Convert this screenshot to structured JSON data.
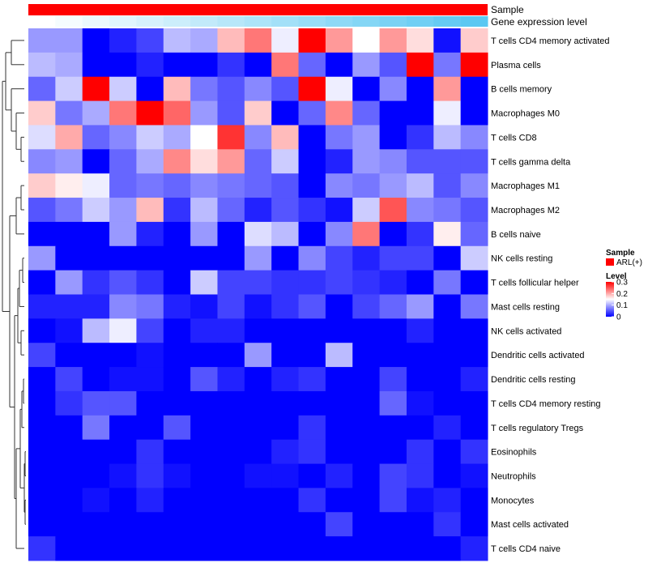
{
  "chart_data": {
    "type": "heatmap",
    "annotation_tracks": [
      {
        "name": "Sample",
        "value_label": "ARL(+)",
        "color": "#ff0000"
      },
      {
        "name": "Gene expression level"
      }
    ],
    "gene_expression_ramp": [
      "#ffffff",
      "#5bc8f2"
    ],
    "rows": [
      "T cells CD4 memory activated",
      "Plasma cells",
      "B cells memory",
      "Macrophages M0",
      "T cells CD8",
      "T cells gamma delta",
      "Macrophages M1",
      "Macrophages M2",
      "B cells naive",
      "NK cells resting",
      "T cells follicular helper",
      "Mast cells resting",
      "NK cells activated",
      "Dendritic cells activated",
      "Dendritic cells resting",
      "T cells CD4 memory resting",
      "T cells regulatory  Tregs",
      "Eosinophils",
      "Neutrophils",
      "Monocytes",
      "Mast cells activated",
      "T cells CD4 naive"
    ],
    "values": [
      [
        0.09,
        0.09,
        0.0,
        0.02,
        0.04,
        0.11,
        0.1,
        0.19,
        0.23,
        0.14,
        0.3,
        0.21,
        0.15,
        0.21,
        0.17,
        0.01,
        0.18
      ],
      [
        0.11,
        0.1,
        0.0,
        0.0,
        0.02,
        0.0,
        0.0,
        0.03,
        0.0,
        0.23,
        0.06,
        0.0,
        0.09,
        0.05,
        0.3,
        0.07,
        0.3
      ],
      [
        0.06,
        0.12,
        0.3,
        0.12,
        0.0,
        0.19,
        0.07,
        0.05,
        0.08,
        0.05,
        0.3,
        0.14,
        0.0,
        0.08,
        0.0,
        0.21,
        0.0
      ],
      [
        0.18,
        0.07,
        0.1,
        0.23,
        0.3,
        0.24,
        0.09,
        0.05,
        0.18,
        0.0,
        0.06,
        0.22,
        0.06,
        0.0,
        0.0,
        0.14,
        0.0
      ],
      [
        0.13,
        0.2,
        0.06,
        0.08,
        0.12,
        0.1,
        0.15,
        0.27,
        0.08,
        0.19,
        0.0,
        0.07,
        0.09,
        0.0,
        0.03,
        0.11,
        0.08
      ],
      [
        0.08,
        0.09,
        0.0,
        0.06,
        0.1,
        0.22,
        0.17,
        0.21,
        0.06,
        0.12,
        0.0,
        0.02,
        0.09,
        0.08,
        0.05,
        0.05,
        0.05
      ],
      [
        0.18,
        0.16,
        0.14,
        0.06,
        0.07,
        0.06,
        0.08,
        0.07,
        0.06,
        0.05,
        0.0,
        0.08,
        0.07,
        0.09,
        0.11,
        0.05,
        0.08
      ],
      [
        0.05,
        0.07,
        0.12,
        0.09,
        0.19,
        0.03,
        0.11,
        0.06,
        0.02,
        0.05,
        0.03,
        0.01,
        0.12,
        0.25,
        0.08,
        0.07,
        0.05
      ],
      [
        0.0,
        0.0,
        0.0,
        0.09,
        0.02,
        0.0,
        0.09,
        0.0,
        0.13,
        0.11,
        0.0,
        0.08,
        0.23,
        0.0,
        0.03,
        0.16,
        0.06
      ],
      [
        0.09,
        0.0,
        0.0,
        0.0,
        0.0,
        0.0,
        0.0,
        0.0,
        0.09,
        0.0,
        0.08,
        0.04,
        0.02,
        0.04,
        0.04,
        0.0,
        0.12
      ],
      [
        0.0,
        0.09,
        0.03,
        0.05,
        0.03,
        0.0,
        0.12,
        0.04,
        0.04,
        0.03,
        0.03,
        0.04,
        0.03,
        0.02,
        0.0,
        0.07,
        0.0
      ],
      [
        0.02,
        0.02,
        0.02,
        0.08,
        0.07,
        0.02,
        0.01,
        0.04,
        0.01,
        0.03,
        0.05,
        0.0,
        0.04,
        0.06,
        0.09,
        0.0,
        0.07
      ],
      [
        0.0,
        0.01,
        0.11,
        0.14,
        0.04,
        0.0,
        0.02,
        0.02,
        0.0,
        0.0,
        0.0,
        0.0,
        0.0,
        0.0,
        0.02,
        0.0,
        0.0
      ],
      [
        0.04,
        0.0,
        0.0,
        0.0,
        0.01,
        0.0,
        0.0,
        0.0,
        0.09,
        0.0,
        0.0,
        0.11,
        0.0,
        0.0,
        0.0,
        0.0,
        0.0
      ],
      [
        0.0,
        0.04,
        0.0,
        0.01,
        0.01,
        0.0,
        0.05,
        0.02,
        0.0,
        0.02,
        0.03,
        0.0,
        0.0,
        0.04,
        0.0,
        0.0,
        0.02
      ],
      [
        0.0,
        0.03,
        0.05,
        0.05,
        0.0,
        0.0,
        0.0,
        0.0,
        0.0,
        0.0,
        0.0,
        0.0,
        0.0,
        0.06,
        0.01,
        0.0,
        0.0
      ],
      [
        0.0,
        0.0,
        0.07,
        0.0,
        0.0,
        0.05,
        0.0,
        0.0,
        0.0,
        0.0,
        0.03,
        0.0,
        0.0,
        0.0,
        0.0,
        0.02,
        0.0
      ],
      [
        0.0,
        0.0,
        0.0,
        0.0,
        0.03,
        0.0,
        0.0,
        0.0,
        0.0,
        0.02,
        0.03,
        0.0,
        0.0,
        0.0,
        0.03,
        0.0,
        0.03
      ],
      [
        0.0,
        0.0,
        0.0,
        0.01,
        0.03,
        0.01,
        0.0,
        0.0,
        0.01,
        0.01,
        0.0,
        0.02,
        0.0,
        0.04,
        0.03,
        0.0,
        0.01
      ],
      [
        0.0,
        0.0,
        0.01,
        0.0,
        0.02,
        0.0,
        0.0,
        0.0,
        0.0,
        0.0,
        0.03,
        0.0,
        0.0,
        0.04,
        0.01,
        0.02,
        0.0
      ],
      [
        0.0,
        0.0,
        0.0,
        0.0,
        0.0,
        0.0,
        0.0,
        0.0,
        0.0,
        0.0,
        0.0,
        0.04,
        0.0,
        0.0,
        0.0,
        0.03,
        0.0
      ],
      [
        0.03,
        0.0,
        0.0,
        0.0,
        0.0,
        0.0,
        0.0,
        0.0,
        0.0,
        0.0,
        0.0,
        0.0,
        0.0,
        0.0,
        0.0,
        0.0,
        0.02
      ]
    ],
    "color_scale": {
      "name": "Level",
      "min": 0,
      "max": 0.3,
      "stops": [
        {
          "value": 0,
          "color": "#0000ff"
        },
        {
          "value": 0.15,
          "color": "#ffffff"
        },
        {
          "value": 0.3,
          "color": "#ff0000"
        }
      ],
      "ticks": [
        0,
        0.1,
        0.2,
        0.3
      ]
    },
    "legend": {
      "sample_title": "Sample",
      "sample_entry": "ARL(+)",
      "level_title": "Level",
      "position": "right"
    },
    "dendrogram": "rows",
    "tick_labels": {
      "0": "0",
      "0.1": "0.1",
      "0.2": "0.2",
      "0.3": "0.3"
    }
  }
}
